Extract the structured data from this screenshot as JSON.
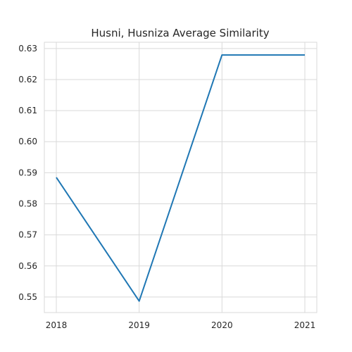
{
  "chart_data": {
    "type": "line",
    "title": "Husni, Husniza Average Similarity",
    "xlabel": "",
    "ylabel": "",
    "x": [
      "2018",
      "2019",
      "2020",
      "2021"
    ],
    "series": [
      {
        "values": [
          0.5885,
          0.5487,
          0.6279,
          0.6279
        ]
      }
    ],
    "xlim": [
      "2018",
      "2021"
    ],
    "ylim": [
      0.545,
      0.632
    ],
    "yticks": [
      "0.55",
      "0.56",
      "0.57",
      "0.58",
      "0.59",
      "0.60",
      "0.61",
      "0.62",
      "0.63"
    ],
    "grid": true,
    "line_color": "#1f77b4"
  }
}
